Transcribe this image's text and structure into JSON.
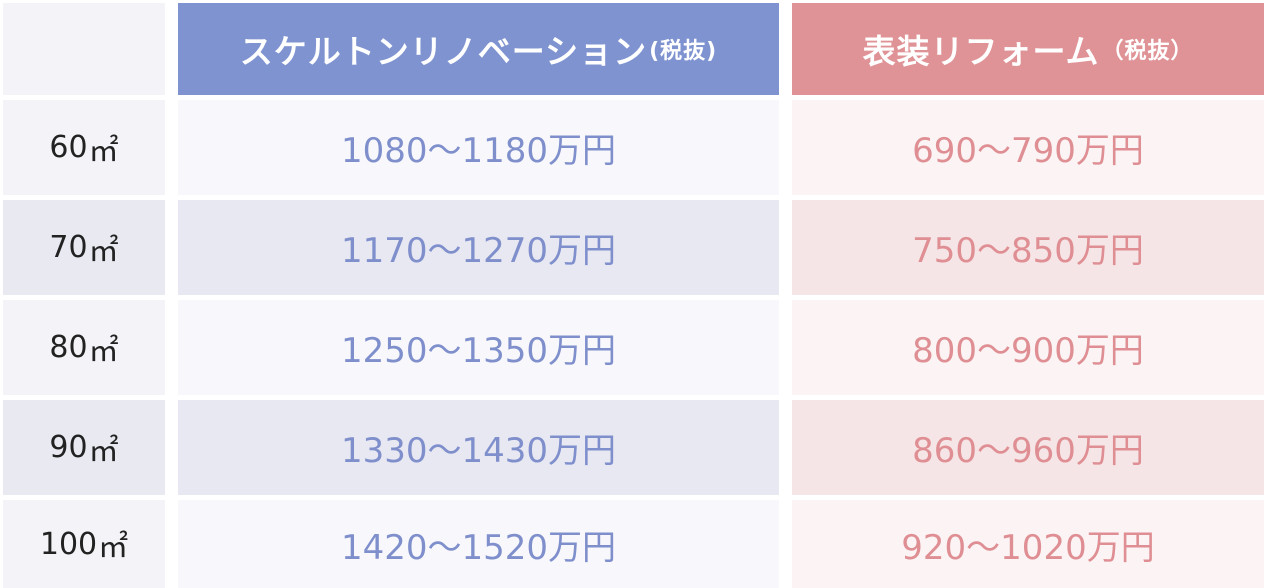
{
  "chart_data": {
    "type": "table",
    "header": {
      "area_label": "",
      "skeleton": {
        "label": "スケルトンリノベーション",
        "tax": "(税抜)"
      },
      "surface": {
        "label": "表装リフォーム",
        "tax": "（税抜）"
      }
    },
    "rows": [
      {
        "area": "60",
        "unit": "㎡",
        "skeleton": "1080〜1180万円",
        "surface": "690〜790万円"
      },
      {
        "area": "70",
        "unit": "㎡",
        "skeleton": "1170〜1270万円",
        "surface": "750〜850万円"
      },
      {
        "area": "80",
        "unit": "㎡",
        "skeleton": "1250〜1350万円",
        "surface": "800〜900万円"
      },
      {
        "area": "90",
        "unit": "㎡",
        "skeleton": "1330〜1430万円",
        "surface": "860〜960万円"
      },
      {
        "area": "100",
        "unit": "㎡",
        "skeleton": "1420〜1520万円",
        "surface": "920〜1020万円"
      }
    ],
    "colors": {
      "skeleton_header": "#7f93d1",
      "surface_header": "#e09397",
      "skeleton_text": "#7f8fcc",
      "surface_text": "#df8f93"
    }
  }
}
